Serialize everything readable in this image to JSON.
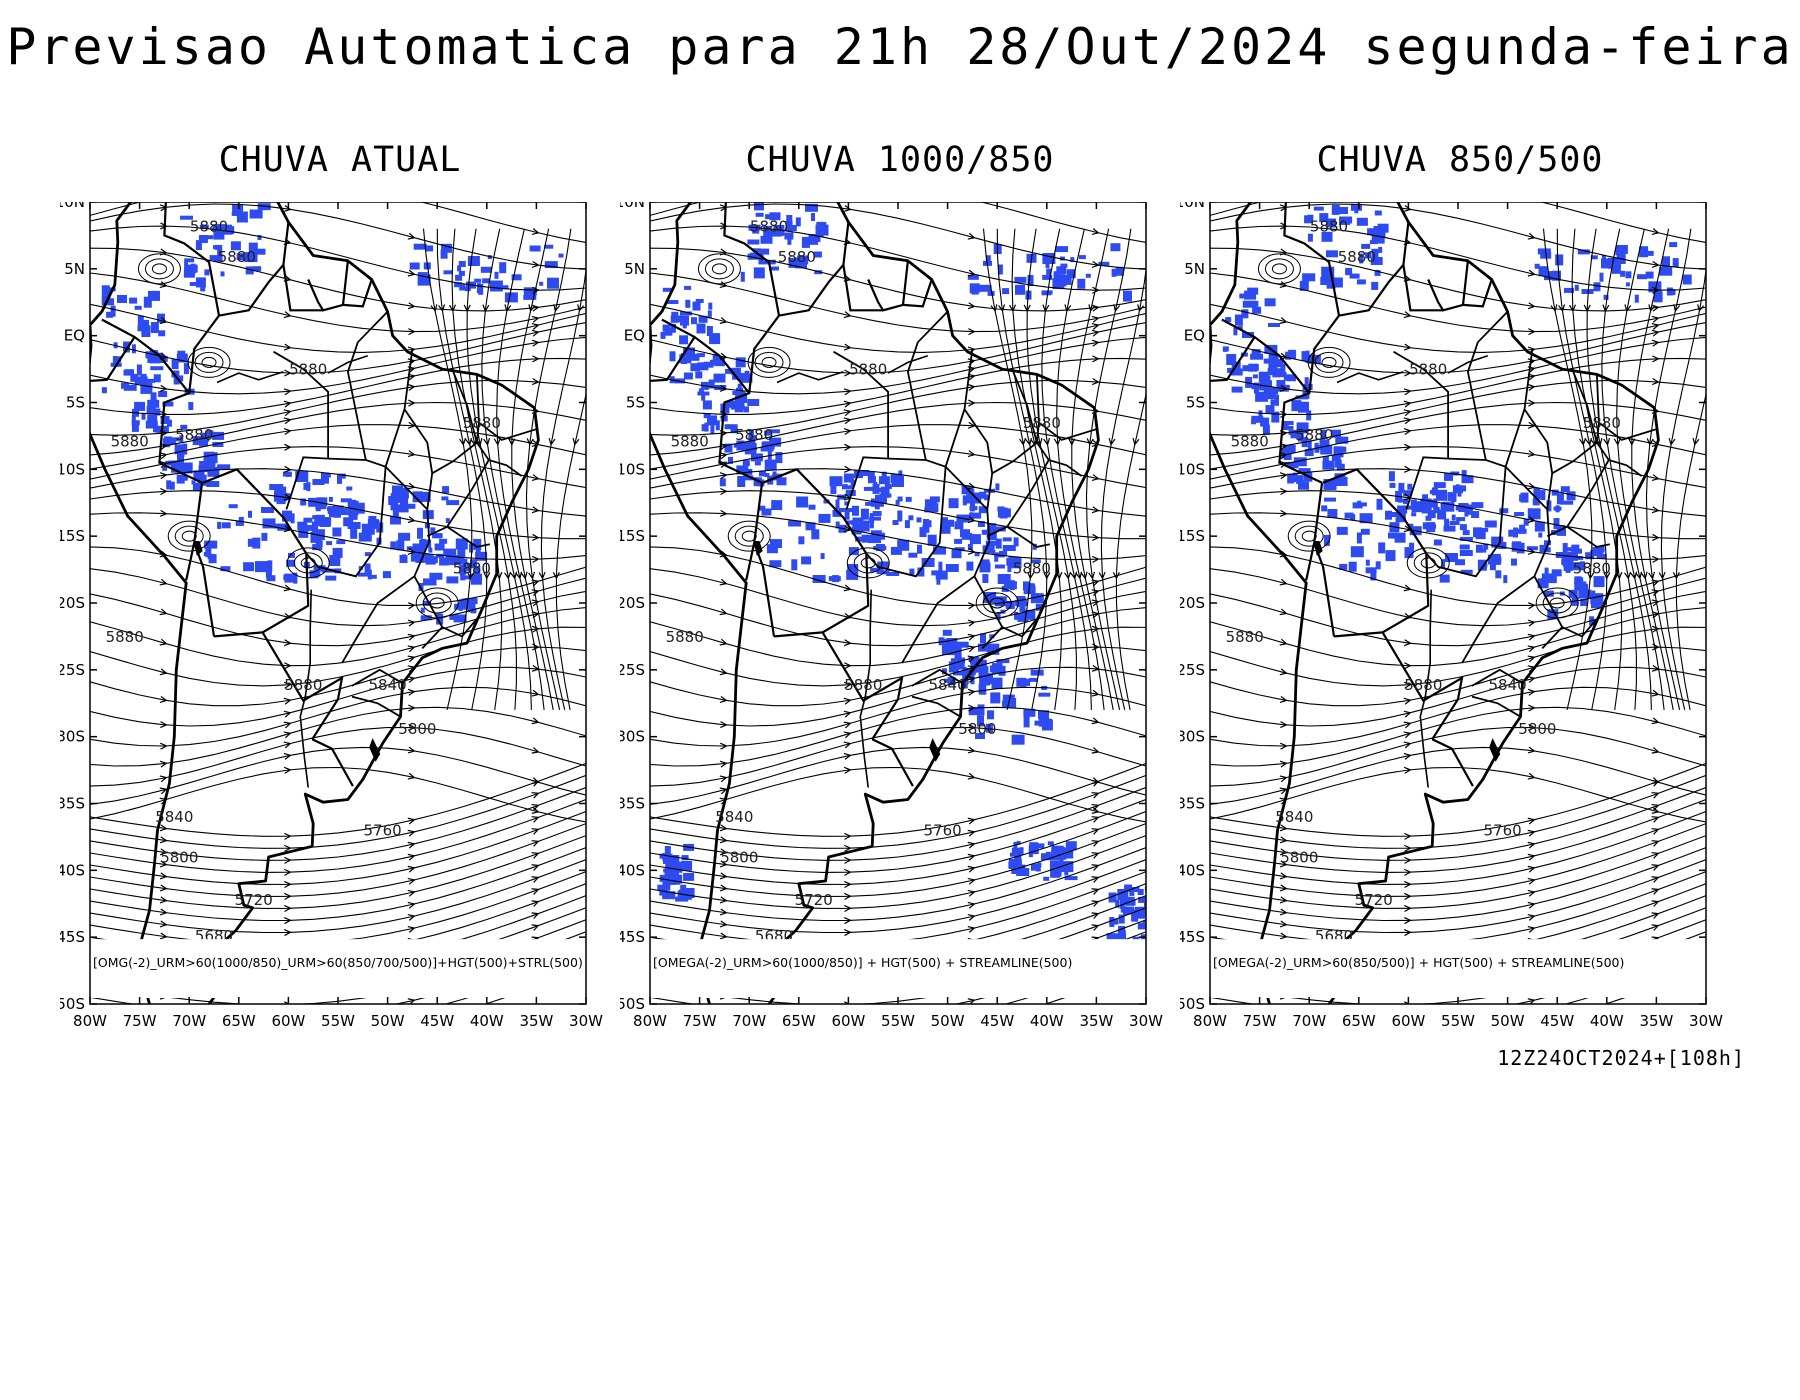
{
  "title": "Previsao Automatica para 21h 28/Out/2024 segunda-feira",
  "run_label": "12Z24OCT2024+[108h]",
  "axes": {
    "lat_labels": [
      "10N",
      "5N",
      "EQ",
      "5S",
      "10S",
      "15S",
      "20S",
      "25S",
      "30S",
      "35S",
      "40S",
      "45S",
      "50S"
    ],
    "lon_labels": [
      "80W",
      "75W",
      "70W",
      "65W",
      "60W",
      "55W",
      "50W",
      "45W",
      "40W",
      "35W",
      "30W"
    ],
    "lat_range": [
      -50,
      10
    ],
    "lon_range": [
      -80,
      -30
    ]
  },
  "colors": {
    "precip": "#2e4bf2",
    "lines": "#000000",
    "background": "#ffffff"
  },
  "contour_labels": [
    {
      "text": "5880",
      "lon": -68,
      "lat": 7.8
    },
    {
      "text": "5880",
      "lon": -65.2,
      "lat": 5.5
    },
    {
      "text": "5880",
      "lon": -58,
      "lat": -2.9
    },
    {
      "text": "5880",
      "lon": -76,
      "lat": -8.3
    },
    {
      "text": "5880",
      "lon": -69.5,
      "lat": -7.8
    },
    {
      "text": "5880",
      "lon": -40.5,
      "lat": -6.9
    },
    {
      "text": "5880",
      "lon": -41.5,
      "lat": -17.8
    },
    {
      "text": "5880",
      "lon": -76.5,
      "lat": -22.9
    },
    {
      "text": "5880",
      "lon": -58.5,
      "lat": -26.5
    },
    {
      "text": "5840",
      "lon": -50,
      "lat": -26.5
    },
    {
      "text": "5800",
      "lon": -47,
      "lat": -29.8
    },
    {
      "text": "5840",
      "lon": -71.5,
      "lat": -36.4
    },
    {
      "text": "5800",
      "lon": -71,
      "lat": -39.4
    },
    {
      "text": "5760",
      "lon": -50.5,
      "lat": -37.4
    },
    {
      "text": "5720",
      "lon": -63.5,
      "lat": -42.6
    },
    {
      "text": "5680",
      "lon": -67.5,
      "lat": -45.3
    }
  ],
  "panels": [
    {
      "id": "chuva-atual",
      "title": "CHUVA ATUAL",
      "legend": "[OMG(-2)_URM>60(1000/850)_URM>60(850/700/500)]+HGT(500)+STRL(500)"
    },
    {
      "id": "chuva-1000-850",
      "title": "CHUVA 1000/850",
      "legend": "[OMEGA(-2)_URM>60(1000/850)] + HGT(500) + STREAMLINE(500)"
    },
    {
      "id": "chuva-850-500",
      "title": "CHUVA 850/500",
      "legend": "[OMEGA(-2)_URM>60(850/500)] + HGT(500) + STREAMLINE(500)"
    }
  ]
}
